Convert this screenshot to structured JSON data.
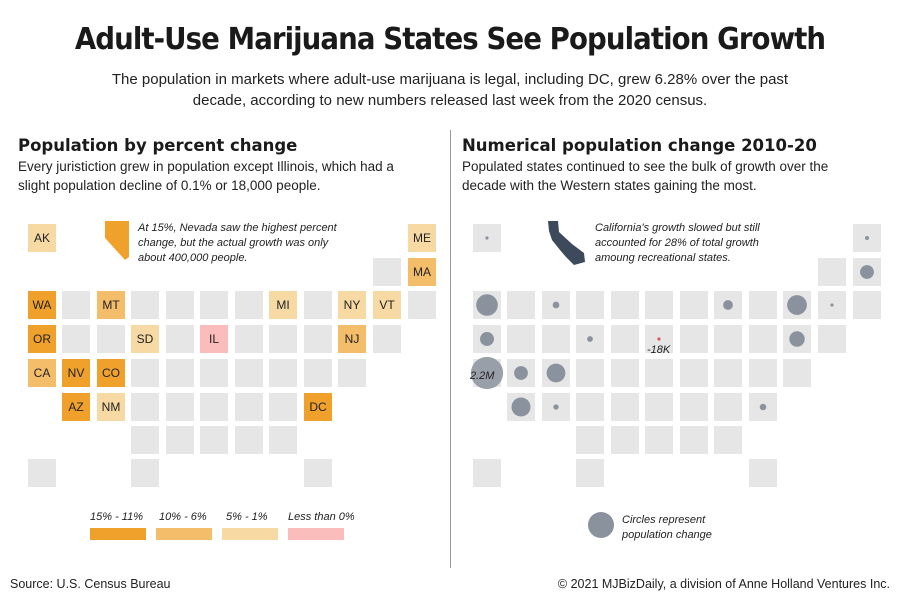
{
  "header": {
    "title": "Adult-Use Marijuana States See Population Growth",
    "subtitle": "The population in markets where adult-use marijuana is legal, including DC, grew 6.28% over the past decade, according to new numbers released last week from the 2020 census."
  },
  "left_panel": {
    "title": "Population by percent change",
    "description": "Every juristiction grew in population except Illinois, which had a slight population decline of 0.1% or 18,000 people.",
    "annotation": "At 15%, Nevada saw the highest percent change, but the actual growth was only about 400,000 people."
  },
  "right_panel": {
    "title": "Numerical population change 2010-20",
    "description": "Populated states continued to see the bulk of growth over the decade with the Western states gaining the most.",
    "annotation": "California's growth slowed but still accounted for 28% of total growth amoung recreational states.",
    "labels": {
      "ca": "2.2M",
      "il": "-18K"
    },
    "circle_legend": "Circles represent population change"
  },
  "chart_data": [
    {
      "type": "heatmap",
      "title": "Population by percent change",
      "legend": [
        {
          "label": "15% - 11%",
          "color": "#f0a12b"
        },
        {
          "label": "10% - 6%",
          "color": "#f4bd6a"
        },
        {
          "label": "5% - 1%",
          "color": "#f7d9a4"
        },
        {
          "label": "Less than 0%",
          "color": "#fbbcbc"
        }
      ],
      "states": [
        {
          "abbr": "AK",
          "class": "5% - 1%"
        },
        {
          "abbr": "ME",
          "class": "5% - 1%"
        },
        {
          "abbr": "MA",
          "class": "10% - 6%"
        },
        {
          "abbr": "WA",
          "class": "15% - 11%"
        },
        {
          "abbr": "MT",
          "class": "10% - 6%"
        },
        {
          "abbr": "MI",
          "class": "5% - 1%"
        },
        {
          "abbr": "NY",
          "class": "5% - 1%"
        },
        {
          "abbr": "VT",
          "class": "5% - 1%"
        },
        {
          "abbr": "OR",
          "class": "15% - 11%"
        },
        {
          "abbr": "SD",
          "class": "5% - 1%"
        },
        {
          "abbr": "IL",
          "class": "Less than 0%"
        },
        {
          "abbr": "NJ",
          "class": "10% - 6%"
        },
        {
          "abbr": "CA",
          "class": "10% - 6%"
        },
        {
          "abbr": "NV",
          "class": "15% - 11%"
        },
        {
          "abbr": "CO",
          "class": "15% - 11%"
        },
        {
          "abbr": "AZ",
          "class": "15% - 11%"
        },
        {
          "abbr": "NM",
          "class": "5% - 1%"
        },
        {
          "abbr": "DC",
          "class": "15% - 11%"
        }
      ],
      "colors": {
        "empty_tile": "#e6e6e6",
        "nevada_shape": "#f0a12b"
      }
    },
    {
      "type": "scatter",
      "title": "Numerical population change 2010-20",
      "unit": "people",
      "values": [
        {
          "state": "AK",
          "change": 3000
        },
        {
          "state": "ME",
          "change": 34000
        },
        {
          "state": "MA",
          "change": 400000
        },
        {
          "state": "WA",
          "change": 980000
        },
        {
          "state": "MT",
          "change": 95000
        },
        {
          "state": "MI",
          "change": 200000
        },
        {
          "state": "NY",
          "change": 820000
        },
        {
          "state": "VT",
          "change": 18000
        },
        {
          "state": "OR",
          "change": 410000
        },
        {
          "state": "SD",
          "change": 70000
        },
        {
          "state": "IL",
          "change": -18000
        },
        {
          "state": "NJ",
          "change": 500000
        },
        {
          "state": "CA",
          "change": 2200000
        },
        {
          "state": "NV",
          "change": 400000
        },
        {
          "state": "CO",
          "change": 740000
        },
        {
          "state": "AZ",
          "change": 760000
        },
        {
          "state": "NM",
          "change": 60000
        },
        {
          "state": "DC",
          "change": 90000
        }
      ],
      "colors": {
        "circle": "#8a929d",
        "negative_marker": "#e05555",
        "empty_tile": "#e6e6e6",
        "california_shape": "#3d4a5c"
      }
    }
  ],
  "footer": {
    "source": "Source: U.S. Census Bureau",
    "credit": "© 2021 MJBizDaily, a division of Anne Holland Ventures Inc."
  }
}
